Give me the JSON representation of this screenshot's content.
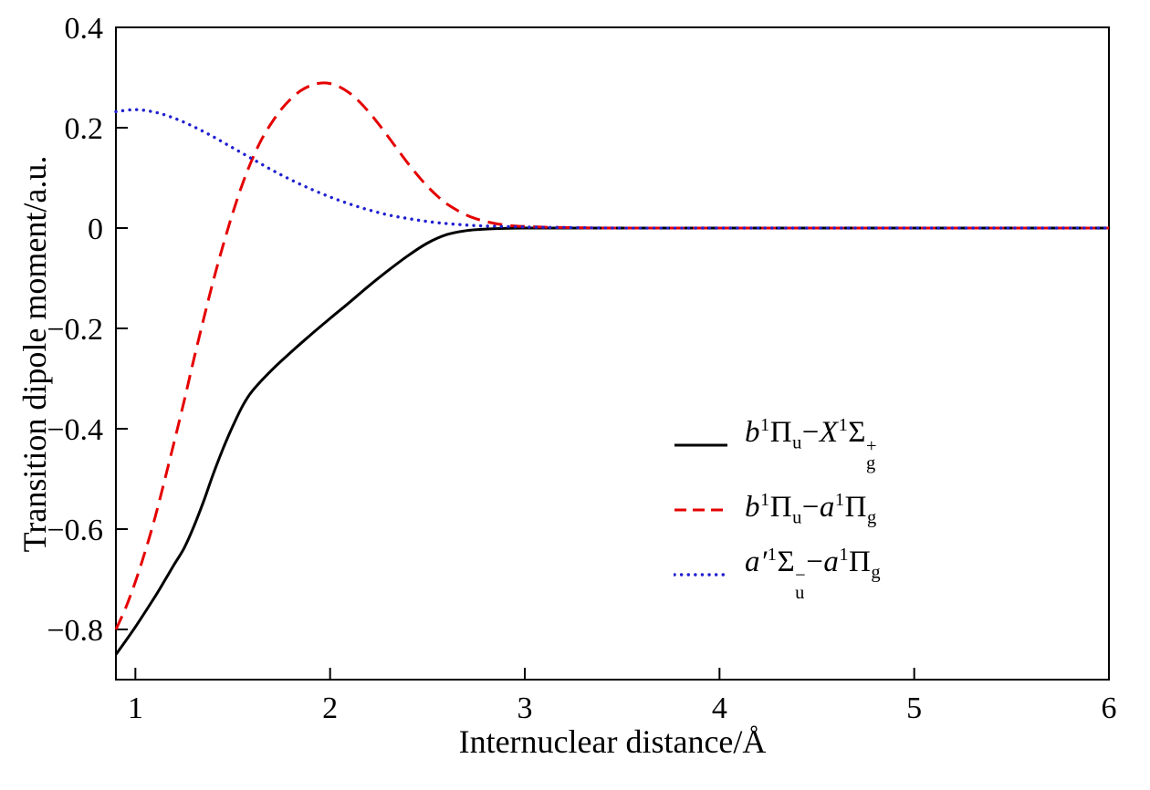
{
  "chart_data": {
    "type": "line",
    "title": "",
    "xlabel": "Internuclear distance/Å",
    "ylabel": "Transition dipole moment/a.u.",
    "xlim": [
      0.9,
      6.0
    ],
    "ylim": [
      -0.9,
      0.4
    ],
    "grid": false,
    "frame": "box",
    "legend_position": "inside-center-right",
    "x_ticks": {
      "values": [
        1,
        2,
        3,
        4,
        5,
        6
      ],
      "labels": [
        "1",
        "2",
        "3",
        "4",
        "5",
        "6"
      ]
    },
    "y_ticks": {
      "values": [
        0.4,
        0.2,
        0,
        -0.2,
        -0.4,
        -0.6,
        -0.8
      ],
      "labels": [
        "0.4",
        "0.2",
        "0",
        "−0.2",
        "−0.4",
        "−0.6",
        "−0.8"
      ]
    },
    "series": [
      {
        "name": "b1Piu-X1Sigmag+",
        "label_plain": "b 1Πu − X 1Σg+",
        "color": "#000000",
        "line_style": "solid",
        "x": [
          0.9,
          1.0,
          1.1,
          1.15,
          1.2,
          1.25,
          1.3,
          1.35,
          1.4,
          1.45,
          1.5,
          1.55,
          1.6,
          1.7,
          1.8,
          1.9,
          2.0,
          2.1,
          2.2,
          2.3,
          2.4,
          2.5,
          2.6,
          2.7,
          2.8,
          3.0,
          3.5,
          4.0,
          5.0,
          6.0
        ],
        "y": [
          -0.85,
          -0.795,
          -0.735,
          -0.703,
          -0.67,
          -0.638,
          -0.595,
          -0.545,
          -0.49,
          -0.44,
          -0.395,
          -0.355,
          -0.325,
          -0.283,
          -0.247,
          -0.213,
          -0.18,
          -0.148,
          -0.115,
          -0.084,
          -0.055,
          -0.03,
          -0.013,
          -0.005,
          -0.002,
          0,
          0,
          0,
          0,
          0
        ],
        "label_tokens": [
          {
            "t": "b",
            "it": true
          },
          {
            "t": "1",
            "pos": "sup"
          },
          {
            "t": "Π"
          },
          {
            "t": "u",
            "pos": "sub"
          },
          {
            "t": "−"
          },
          {
            "t": "X",
            "it": true
          },
          {
            "t": "1",
            "pos": "sup"
          },
          {
            "t": "Σ"
          },
          {
            "pos": "stack",
            "top": "+",
            "bottom": "g"
          }
        ]
      },
      {
        "name": "b1Piu-a1Pig",
        "label_plain": "b 1Πu − a 1Πg",
        "color": "#e50000",
        "line_style": "dashed",
        "x": [
          0.9,
          0.95,
          1.0,
          1.05,
          1.1,
          1.15,
          1.2,
          1.25,
          1.3,
          1.35,
          1.4,
          1.45,
          1.5,
          1.55,
          1.6,
          1.65,
          1.7,
          1.75,
          1.8,
          1.85,
          1.9,
          1.95,
          2.0,
          2.05,
          2.1,
          2.15,
          2.2,
          2.25,
          2.3,
          2.35,
          2.4,
          2.45,
          2.5,
          2.55,
          2.6,
          2.7,
          2.8,
          2.9,
          3.0,
          3.2,
          3.5,
          4.0,
          5.0,
          6.0
        ],
        "y": [
          -0.8,
          -0.757,
          -0.705,
          -0.645,
          -0.578,
          -0.503,
          -0.425,
          -0.345,
          -0.262,
          -0.182,
          -0.105,
          -0.035,
          0.03,
          0.088,
          0.137,
          0.178,
          0.21,
          0.237,
          0.258,
          0.274,
          0.284,
          0.289,
          0.288,
          0.281,
          0.269,
          0.252,
          0.231,
          0.207,
          0.181,
          0.155,
          0.129,
          0.105,
          0.083,
          0.064,
          0.048,
          0.026,
          0.013,
          0.006,
          0.003,
          0.001,
          0,
          0,
          0,
          0
        ],
        "label_tokens": [
          {
            "t": "b",
            "it": true
          },
          {
            "t": "1",
            "pos": "sup"
          },
          {
            "t": "Π"
          },
          {
            "t": "u",
            "pos": "sub"
          },
          {
            "t": "−"
          },
          {
            "t": "a",
            "it": true
          },
          {
            "t": "1",
            "pos": "sup"
          },
          {
            "t": "Π"
          },
          {
            "t": "g",
            "pos": "sub"
          }
        ]
      },
      {
        "name": "a'1Sigmau--a1Pig",
        "label_plain": "a′ 1Σu− − a 1Πg",
        "color": "#2020d0",
        "line_style": "dotted",
        "x": [
          0.9,
          1.0,
          1.1,
          1.2,
          1.3,
          1.4,
          1.5,
          1.6,
          1.7,
          1.8,
          1.9,
          2.0,
          2.1,
          2.2,
          2.3,
          2.4,
          2.5,
          2.6,
          2.7,
          2.8,
          3.0,
          3.2,
          3.5,
          4.0,
          5.0,
          6.0
        ],
        "y": [
          0.232,
          0.236,
          0.231,
          0.219,
          0.202,
          0.182,
          0.16,
          0.138,
          0.116,
          0.096,
          0.078,
          0.062,
          0.048,
          0.036,
          0.026,
          0.019,
          0.013,
          0.009,
          0.006,
          0.004,
          0.002,
          0.001,
          0,
          0,
          0,
          0
        ],
        "label_tokens": [
          {
            "t": "a′",
            "it": true
          },
          {
            "t": "1",
            "pos": "sup"
          },
          {
            "t": "Σ"
          },
          {
            "pos": "stack",
            "top": "−",
            "bottom": "u"
          },
          {
            "t": "−"
          },
          {
            "t": "a",
            "it": true
          },
          {
            "t": "1",
            "pos": "sup"
          },
          {
            "t": "Π"
          },
          {
            "t": "g",
            "pos": "sub"
          }
        ]
      }
    ]
  }
}
